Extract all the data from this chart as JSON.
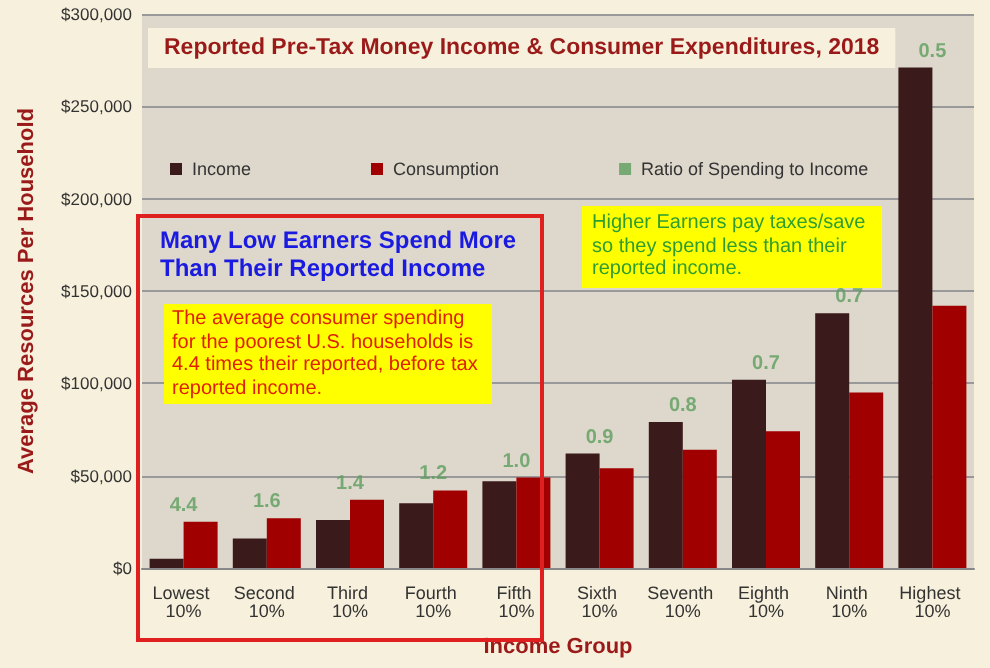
{
  "chart_data": {
    "type": "bar",
    "title": "Reported Pre-Tax Money Income & Consumer Expenditures, 2018",
    "xlabel": "Income Group",
    "ylabel": "Average Resources Per Household",
    "categories": [
      "Lowest 10%",
      "Second 10%",
      "Third 10%",
      "Fourth 10%",
      "Fifth 10%",
      "Sixth 10%",
      "Seventh 10%",
      "Eighth 10%",
      "Ninth 10%",
      "Highest 10%"
    ],
    "series": [
      {
        "name": "Income",
        "color": "#3b1a1c",
        "values": [
          5000,
          16000,
          26000,
          35000,
          47000,
          62000,
          79000,
          102000,
          138000,
          271000
        ]
      },
      {
        "name": "Consumption",
        "color": "#a00000",
        "values": [
          25000,
          27000,
          37000,
          42000,
          49000,
          54000,
          64000,
          74000,
          95000,
          142000
        ]
      },
      {
        "name": "Ratio of Spending to Income",
        "color": "#5c9e5c",
        "type": "scatter",
        "values": [
          null,
          null,
          null,
          null,
          null,
          null,
          null,
          null,
          null,
          null
        ]
      }
    ],
    "ylim": [
      0,
      300000
    ],
    "yticks": [
      {
        "value": 0,
        "label": "$0"
      },
      {
        "value": 50000,
        "label": "$50,000"
      },
      {
        "value": 100000,
        "label": "$100,000"
      },
      {
        "value": 150000,
        "label": "$150,000"
      },
      {
        "value": 200000,
        "label": "$200,000"
      },
      {
        "value": 250000,
        "label": "$250,000"
      },
      {
        "value": 300000,
        "label": "$300,000"
      }
    ],
    "grid": "y",
    "legend": "top left",
    "annotations": [
      "Many Low Earners Spend More Than Their Reported Income",
      "The average consumer spending for the poorest U.S. households is 4.4 times their reported, before tax reported income.",
      "Higher Earners pay taxes/save so they spend less than their reported income.",
      {
        "text": "4.4",
        "x": "Lowest 10%",
        "y": 25000
      },
      {
        "text": "1.6",
        "x": "Second 10%",
        "y": 27000
      },
      {
        "text": "1.4",
        "x": "Third 10%",
        "y": 37000
      },
      {
        "text": "1.2",
        "x": "Fourth 10%",
        "y": 42000
      },
      {
        "text": "1.0",
        "x": "Fifth 10%",
        "y": 49000
      },
      {
        "text": "0.9",
        "x": "Sixth 10%",
        "y": 62000
      },
      {
        "text": "0.8",
        "x": "Seventh 10%",
        "y": 79000
      },
      {
        "text": "0.7",
        "x": "Eighth 10%",
        "y": 102000
      },
      {
        "text": "0.7",
        "x": "Ninth 10%",
        "y": 138000
      },
      {
        "text": "0.5",
        "x": "Highest 10%",
        "y": 271000
      }
    ]
  }
}
